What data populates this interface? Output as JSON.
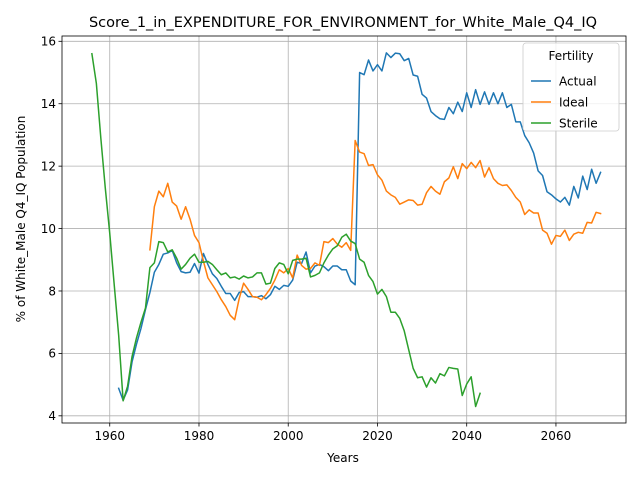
{
  "chart_data": {
    "type": "line",
    "title": "Score_1_in_EXPENDITURE_FOR_ENVIRONMENT_for_White_Male_Q4_IQ",
    "xlabel": "Years",
    "ylabel": "% of White_Male Q4_IQ Population",
    "xlim": [
      1949.3,
      2075.7
    ],
    "ylim": [
      3.77,
      16.17
    ],
    "xticks": [
      1960,
      1980,
      2000,
      2020,
      2040,
      2060
    ],
    "yticks": [
      4,
      6,
      8,
      10,
      12,
      14,
      16
    ],
    "grid": true,
    "legend": {
      "title": "Fertility",
      "placement": "top-right"
    },
    "series": [
      {
        "name": "Actual",
        "color": "#1f77b4",
        "points": [
          [
            1962,
            4.88
          ],
          [
            1963,
            4.5
          ],
          [
            1964,
            4.83
          ],
          [
            1965,
            5.73
          ],
          [
            1966,
            6.3
          ],
          [
            1967,
            6.8
          ],
          [
            1968,
            7.4
          ],
          [
            1969,
            7.95
          ],
          [
            1970,
            8.6
          ],
          [
            1971,
            8.85
          ],
          [
            1972,
            9.18
          ],
          [
            1973,
            9.22
          ],
          [
            1974,
            9.3
          ],
          [
            1975,
            8.9
          ],
          [
            1976,
            8.62
          ],
          [
            1977,
            8.58
          ],
          [
            1978,
            8.6
          ],
          [
            1979,
            8.88
          ],
          [
            1980,
            8.57
          ],
          [
            1981,
            9.2
          ],
          [
            1982,
            8.85
          ],
          [
            1983,
            8.55
          ],
          [
            1984,
            8.4
          ],
          [
            1985,
            8.15
          ],
          [
            1986,
            7.92
          ],
          [
            1987,
            7.92
          ],
          [
            1988,
            7.7
          ],
          [
            1989,
            7.95
          ],
          [
            1990,
            7.98
          ],
          [
            1991,
            7.82
          ],
          [
            1992,
            7.82
          ],
          [
            1993,
            7.8
          ],
          [
            1994,
            7.85
          ],
          [
            1995,
            7.75
          ],
          [
            1996,
            7.88
          ],
          [
            1997,
            8.15
          ],
          [
            1998,
            8.05
          ],
          [
            1999,
            8.18
          ],
          [
            2000,
            8.15
          ],
          [
            2001,
            8.35
          ],
          [
            2002,
            8.92
          ],
          [
            2003,
            8.88
          ],
          [
            2004,
            9.25
          ],
          [
            2005,
            8.58
          ],
          [
            2006,
            8.8
          ],
          [
            2007,
            8.85
          ],
          [
            2008,
            8.78
          ],
          [
            2009,
            8.65
          ],
          [
            2010,
            8.8
          ],
          [
            2011,
            8.8
          ],
          [
            2012,
            8.68
          ],
          [
            2013,
            8.68
          ],
          [
            2014,
            8.32
          ],
          [
            2015,
            8.2
          ],
          [
            2016,
            15.0
          ],
          [
            2017,
            14.93
          ],
          [
            2018,
            15.4
          ],
          [
            2019,
            15.05
          ],
          [
            2020,
            15.25
          ],
          [
            2021,
            15.05
          ],
          [
            2022,
            15.63
          ],
          [
            2023,
            15.48
          ],
          [
            2024,
            15.62
          ],
          [
            2025,
            15.6
          ],
          [
            2026,
            15.38
          ],
          [
            2027,
            15.45
          ],
          [
            2028,
            14.92
          ],
          [
            2029,
            14.88
          ],
          [
            2030,
            14.3
          ],
          [
            2031,
            14.18
          ],
          [
            2032,
            13.75
          ],
          [
            2033,
            13.62
          ],
          [
            2034,
            13.52
          ],
          [
            2035,
            13.5
          ],
          [
            2036,
            13.88
          ],
          [
            2037,
            13.68
          ],
          [
            2038,
            14.05
          ],
          [
            2039,
            13.75
          ],
          [
            2040,
            14.35
          ],
          [
            2041,
            13.88
          ],
          [
            2042,
            14.45
          ],
          [
            2043,
            13.98
          ],
          [
            2044,
            14.38
          ],
          [
            2045,
            13.98
          ],
          [
            2046,
            14.35
          ],
          [
            2047,
            14.0
          ],
          [
            2048,
            14.35
          ],
          [
            2049,
            13.88
          ],
          [
            2050,
            13.98
          ],
          [
            2051,
            13.42
          ],
          [
            2052,
            13.42
          ],
          [
            2053,
            12.98
          ],
          [
            2054,
            12.75
          ],
          [
            2055,
            12.42
          ],
          [
            2056,
            11.85
          ],
          [
            2057,
            11.7
          ],
          [
            2058,
            11.18
          ],
          [
            2059,
            11.08
          ],
          [
            2060,
            10.95
          ],
          [
            2061,
            10.85
          ],
          [
            2062,
            11.0
          ],
          [
            2063,
            10.75
          ],
          [
            2064,
            11.35
          ],
          [
            2065,
            10.98
          ],
          [
            2066,
            11.68
          ],
          [
            2067,
            11.25
          ],
          [
            2068,
            11.9
          ],
          [
            2069,
            11.45
          ],
          [
            2070,
            11.8
          ]
        ]
      },
      {
        "name": "Ideal",
        "color": "#ff7f0e",
        "points": [
          [
            1969,
            9.32
          ],
          [
            1970,
            10.7
          ],
          [
            1971,
            11.2
          ],
          [
            1972,
            11.02
          ],
          [
            1973,
            11.45
          ],
          [
            1974,
            10.85
          ],
          [
            1975,
            10.72
          ],
          [
            1976,
            10.3
          ],
          [
            1977,
            10.7
          ],
          [
            1978,
            10.3
          ],
          [
            1979,
            9.78
          ],
          [
            1980,
            9.55
          ],
          [
            1981,
            8.95
          ],
          [
            1982,
            8.42
          ],
          [
            1983,
            8.2
          ],
          [
            1984,
            7.98
          ],
          [
            1985,
            7.72
          ],
          [
            1986,
            7.5
          ],
          [
            1987,
            7.22
          ],
          [
            1988,
            7.08
          ],
          [
            1989,
            7.75
          ],
          [
            1990,
            8.25
          ],
          [
            1991,
            8.05
          ],
          [
            1992,
            7.82
          ],
          [
            1993,
            7.8
          ],
          [
            1994,
            7.72
          ],
          [
            1995,
            7.88
          ],
          [
            1996,
            8.08
          ],
          [
            1997,
            8.35
          ],
          [
            1998,
            8.68
          ],
          [
            1999,
            8.58
          ],
          [
            2000,
            8.72
          ],
          [
            2001,
            8.42
          ],
          [
            2002,
            9.15
          ],
          [
            2003,
            8.82
          ],
          [
            2004,
            8.7
          ],
          [
            2005,
            8.72
          ],
          [
            2006,
            8.9
          ],
          [
            2007,
            8.82
          ],
          [
            2008,
            9.58
          ],
          [
            2009,
            9.55
          ],
          [
            2010,
            9.68
          ],
          [
            2011,
            9.5
          ],
          [
            2012,
            9.4
          ],
          [
            2013,
            9.55
          ],
          [
            2014,
            9.3
          ],
          [
            2015,
            12.82
          ],
          [
            2016,
            12.45
          ],
          [
            2017,
            12.4
          ],
          [
            2018,
            12.02
          ],
          [
            2019,
            12.05
          ],
          [
            2020,
            11.72
          ],
          [
            2021,
            11.55
          ],
          [
            2022,
            11.2
          ],
          [
            2023,
            11.08
          ],
          [
            2024,
            11.0
          ],
          [
            2025,
            10.78
          ],
          [
            2026,
            10.85
          ],
          [
            2027,
            10.92
          ],
          [
            2028,
            10.9
          ],
          [
            2029,
            10.75
          ],
          [
            2030,
            10.78
          ],
          [
            2031,
            11.15
          ],
          [
            2032,
            11.35
          ],
          [
            2033,
            11.2
          ],
          [
            2034,
            11.1
          ],
          [
            2035,
            11.5
          ],
          [
            2036,
            11.62
          ],
          [
            2037,
            11.98
          ],
          [
            2038,
            11.6
          ],
          [
            2039,
            12.08
          ],
          [
            2040,
            11.92
          ],
          [
            2041,
            12.12
          ],
          [
            2042,
            11.95
          ],
          [
            2043,
            12.18
          ],
          [
            2044,
            11.65
          ],
          [
            2045,
            11.95
          ],
          [
            2046,
            11.6
          ],
          [
            2047,
            11.45
          ],
          [
            2048,
            11.38
          ],
          [
            2049,
            11.4
          ],
          [
            2050,
            11.22
          ],
          [
            2051,
            11.0
          ],
          [
            2052,
            10.85
          ],
          [
            2053,
            10.45
          ],
          [
            2054,
            10.6
          ],
          [
            2055,
            10.5
          ],
          [
            2056,
            10.5
          ],
          [
            2057,
            9.95
          ],
          [
            2058,
            9.85
          ],
          [
            2059,
            9.5
          ],
          [
            2060,
            9.78
          ],
          [
            2061,
            9.75
          ],
          [
            2062,
            9.95
          ],
          [
            2063,
            9.62
          ],
          [
            2064,
            9.82
          ],
          [
            2065,
            9.88
          ],
          [
            2066,
            9.85
          ],
          [
            2067,
            10.2
          ],
          [
            2068,
            10.18
          ],
          [
            2069,
            10.52
          ],
          [
            2070,
            10.48
          ]
        ]
      },
      {
        "name": "Sterile",
        "color": "#2ca02c",
        "points": [
          [
            1956,
            15.6
          ],
          [
            1957,
            14.65
          ],
          [
            1958,
            12.9
          ],
          [
            1959,
            11.3
          ],
          [
            1960,
            9.85
          ],
          [
            1961,
            8.2
          ],
          [
            1962,
            6.58
          ],
          [
            1963,
            4.48
          ],
          [
            1964,
            4.95
          ],
          [
            1965,
            5.9
          ],
          [
            1966,
            6.5
          ],
          [
            1967,
            7.0
          ],
          [
            1968,
            7.45
          ],
          [
            1969,
            8.75
          ],
          [
            1970,
            8.9
          ],
          [
            1971,
            9.58
          ],
          [
            1972,
            9.55
          ],
          [
            1973,
            9.25
          ],
          [
            1974,
            9.32
          ],
          [
            1975,
            9.05
          ],
          [
            1976,
            8.7
          ],
          [
            1977,
            8.85
          ],
          [
            1978,
            9.05
          ],
          [
            1979,
            9.18
          ],
          [
            1980,
            8.92
          ],
          [
            1981,
            8.92
          ],
          [
            1982,
            8.95
          ],
          [
            1983,
            8.85
          ],
          [
            1984,
            8.68
          ],
          [
            1985,
            8.52
          ],
          [
            1986,
            8.58
          ],
          [
            1987,
            8.42
          ],
          [
            1988,
            8.45
          ],
          [
            1989,
            8.38
          ],
          [
            1990,
            8.48
          ],
          [
            1991,
            8.42
          ],
          [
            1992,
            8.45
          ],
          [
            1993,
            8.58
          ],
          [
            1994,
            8.58
          ],
          [
            1995,
            8.22
          ],
          [
            1996,
            8.25
          ],
          [
            1997,
            8.72
          ],
          [
            1998,
            8.9
          ],
          [
            1999,
            8.85
          ],
          [
            2000,
            8.55
          ],
          [
            2001,
            8.98
          ],
          [
            2002,
            9.02
          ],
          [
            2003,
            9.02
          ],
          [
            2004,
            9.05
          ],
          [
            2005,
            8.45
          ],
          [
            2006,
            8.5
          ],
          [
            2007,
            8.58
          ],
          [
            2008,
            8.9
          ],
          [
            2009,
            9.15
          ],
          [
            2010,
            9.35
          ],
          [
            2011,
            9.45
          ],
          [
            2012,
            9.72
          ],
          [
            2013,
            9.82
          ],
          [
            2014,
            9.6
          ],
          [
            2015,
            9.52
          ],
          [
            2016,
            9.02
          ],
          [
            2017,
            8.92
          ],
          [
            2018,
            8.5
          ],
          [
            2019,
            8.3
          ],
          [
            2020,
            7.9
          ],
          [
            2021,
            8.05
          ],
          [
            2022,
            7.82
          ],
          [
            2023,
            7.32
          ],
          [
            2024,
            7.32
          ],
          [
            2025,
            7.12
          ],
          [
            2026,
            6.72
          ],
          [
            2027,
            6.12
          ],
          [
            2028,
            5.52
          ],
          [
            2029,
            5.22
          ],
          [
            2030,
            5.25
          ],
          [
            2031,
            4.92
          ],
          [
            2032,
            5.22
          ],
          [
            2033,
            5.05
          ],
          [
            2034,
            5.35
          ],
          [
            2035,
            5.28
          ],
          [
            2036,
            5.55
          ],
          [
            2037,
            5.52
          ],
          [
            2038,
            5.5
          ],
          [
            2039,
            4.65
          ],
          [
            2040,
            5.02
          ],
          [
            2041,
            5.25
          ],
          [
            2042,
            4.3
          ],
          [
            2043,
            4.72
          ]
        ]
      }
    ]
  }
}
